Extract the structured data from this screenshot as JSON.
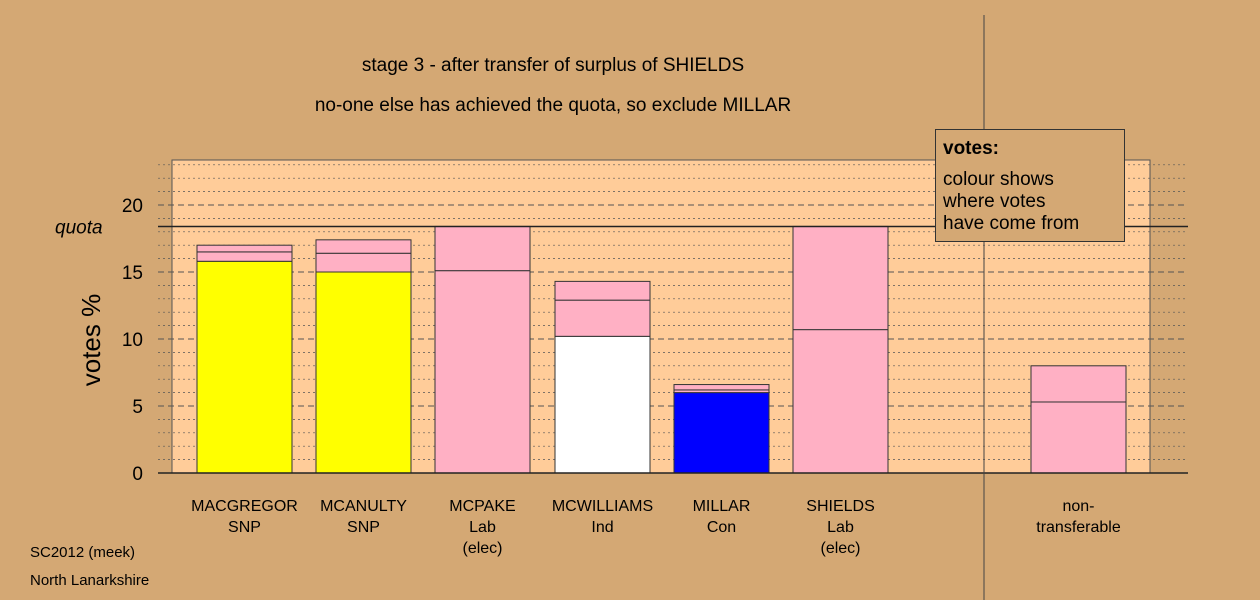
{
  "title": "stage 3 - after transfer of surplus of SHIELDS",
  "subtitle": "no-one else has achieved the quota, so exclude MILLAR",
  "footer": {
    "line1": "SC2012 (meek)",
    "line2": "North Lanarkshire"
  },
  "legend": {
    "title": "votes:",
    "lines": [
      "colour shows",
      "where votes",
      "have come from"
    ]
  },
  "colors": {
    "background": "#d4a874",
    "plot_area": "#ffcc99",
    "SNP": "#ffff00",
    "Lab": "#ffb0c4",
    "Ind": "#ffffff",
    "Con": "#0000ff"
  },
  "chart_data": {
    "type": "bar",
    "stacked": true,
    "ylabel": "votes %",
    "ylim": [
      0,
      23.5
    ],
    "yticks": [
      0,
      5,
      10,
      15,
      20
    ],
    "quota": 18.4,
    "quota_label": "quota",
    "grid": "dotted every 1%, dashed every 5%",
    "candidates": [
      {
        "name": "MACGREGOR",
        "party": "SNP",
        "note": "",
        "segments": [
          {
            "value": 15.8,
            "color": "#ffff00"
          },
          {
            "value": 0.7,
            "color": "#ffb0c4"
          },
          {
            "value": 0.5,
            "color": "#ffb0c4"
          }
        ]
      },
      {
        "name": "MCANULTY",
        "party": "SNP",
        "note": "",
        "segments": [
          {
            "value": 15.0,
            "color": "#ffff00"
          },
          {
            "value": 1.4,
            "color": "#ffb0c4"
          },
          {
            "value": 1.0,
            "color": "#ffb0c4"
          }
        ]
      },
      {
        "name": "MCPAKE",
        "party": "Lab",
        "note": "(elec)",
        "segments": [
          {
            "value": 15.1,
            "color": "#ffb0c4"
          },
          {
            "value": 3.3,
            "color": "#ffb0c4"
          }
        ]
      },
      {
        "name": "MCWILLIAMS",
        "party": "Ind",
        "note": "",
        "segments": [
          {
            "value": 10.2,
            "color": "#ffffff"
          },
          {
            "value": 2.7,
            "color": "#ffb0c4"
          },
          {
            "value": 1.4,
            "color": "#ffb0c4"
          }
        ]
      },
      {
        "name": "MILLAR",
        "party": "Con",
        "note": "",
        "segments": [
          {
            "value": 6.0,
            "color": "#0000ff"
          },
          {
            "value": 0.2,
            "color": "#ffb0c4"
          },
          {
            "value": 0.4,
            "color": "#ffb0c4"
          }
        ]
      },
      {
        "name": "SHIELDS",
        "party": "Lab",
        "note": "(elec)",
        "segments": [
          {
            "value": 10.7,
            "color": "#ffb0c4"
          },
          {
            "value": 7.7,
            "color": "#ffb0c4"
          }
        ]
      }
    ],
    "non_transferable": {
      "label_lines": [
        "non-",
        "transferable"
      ],
      "segments": [
        {
          "value": 5.3,
          "color": "#ffb0c4"
        },
        {
          "value": 2.7,
          "color": "#ffb0c4"
        }
      ]
    }
  }
}
